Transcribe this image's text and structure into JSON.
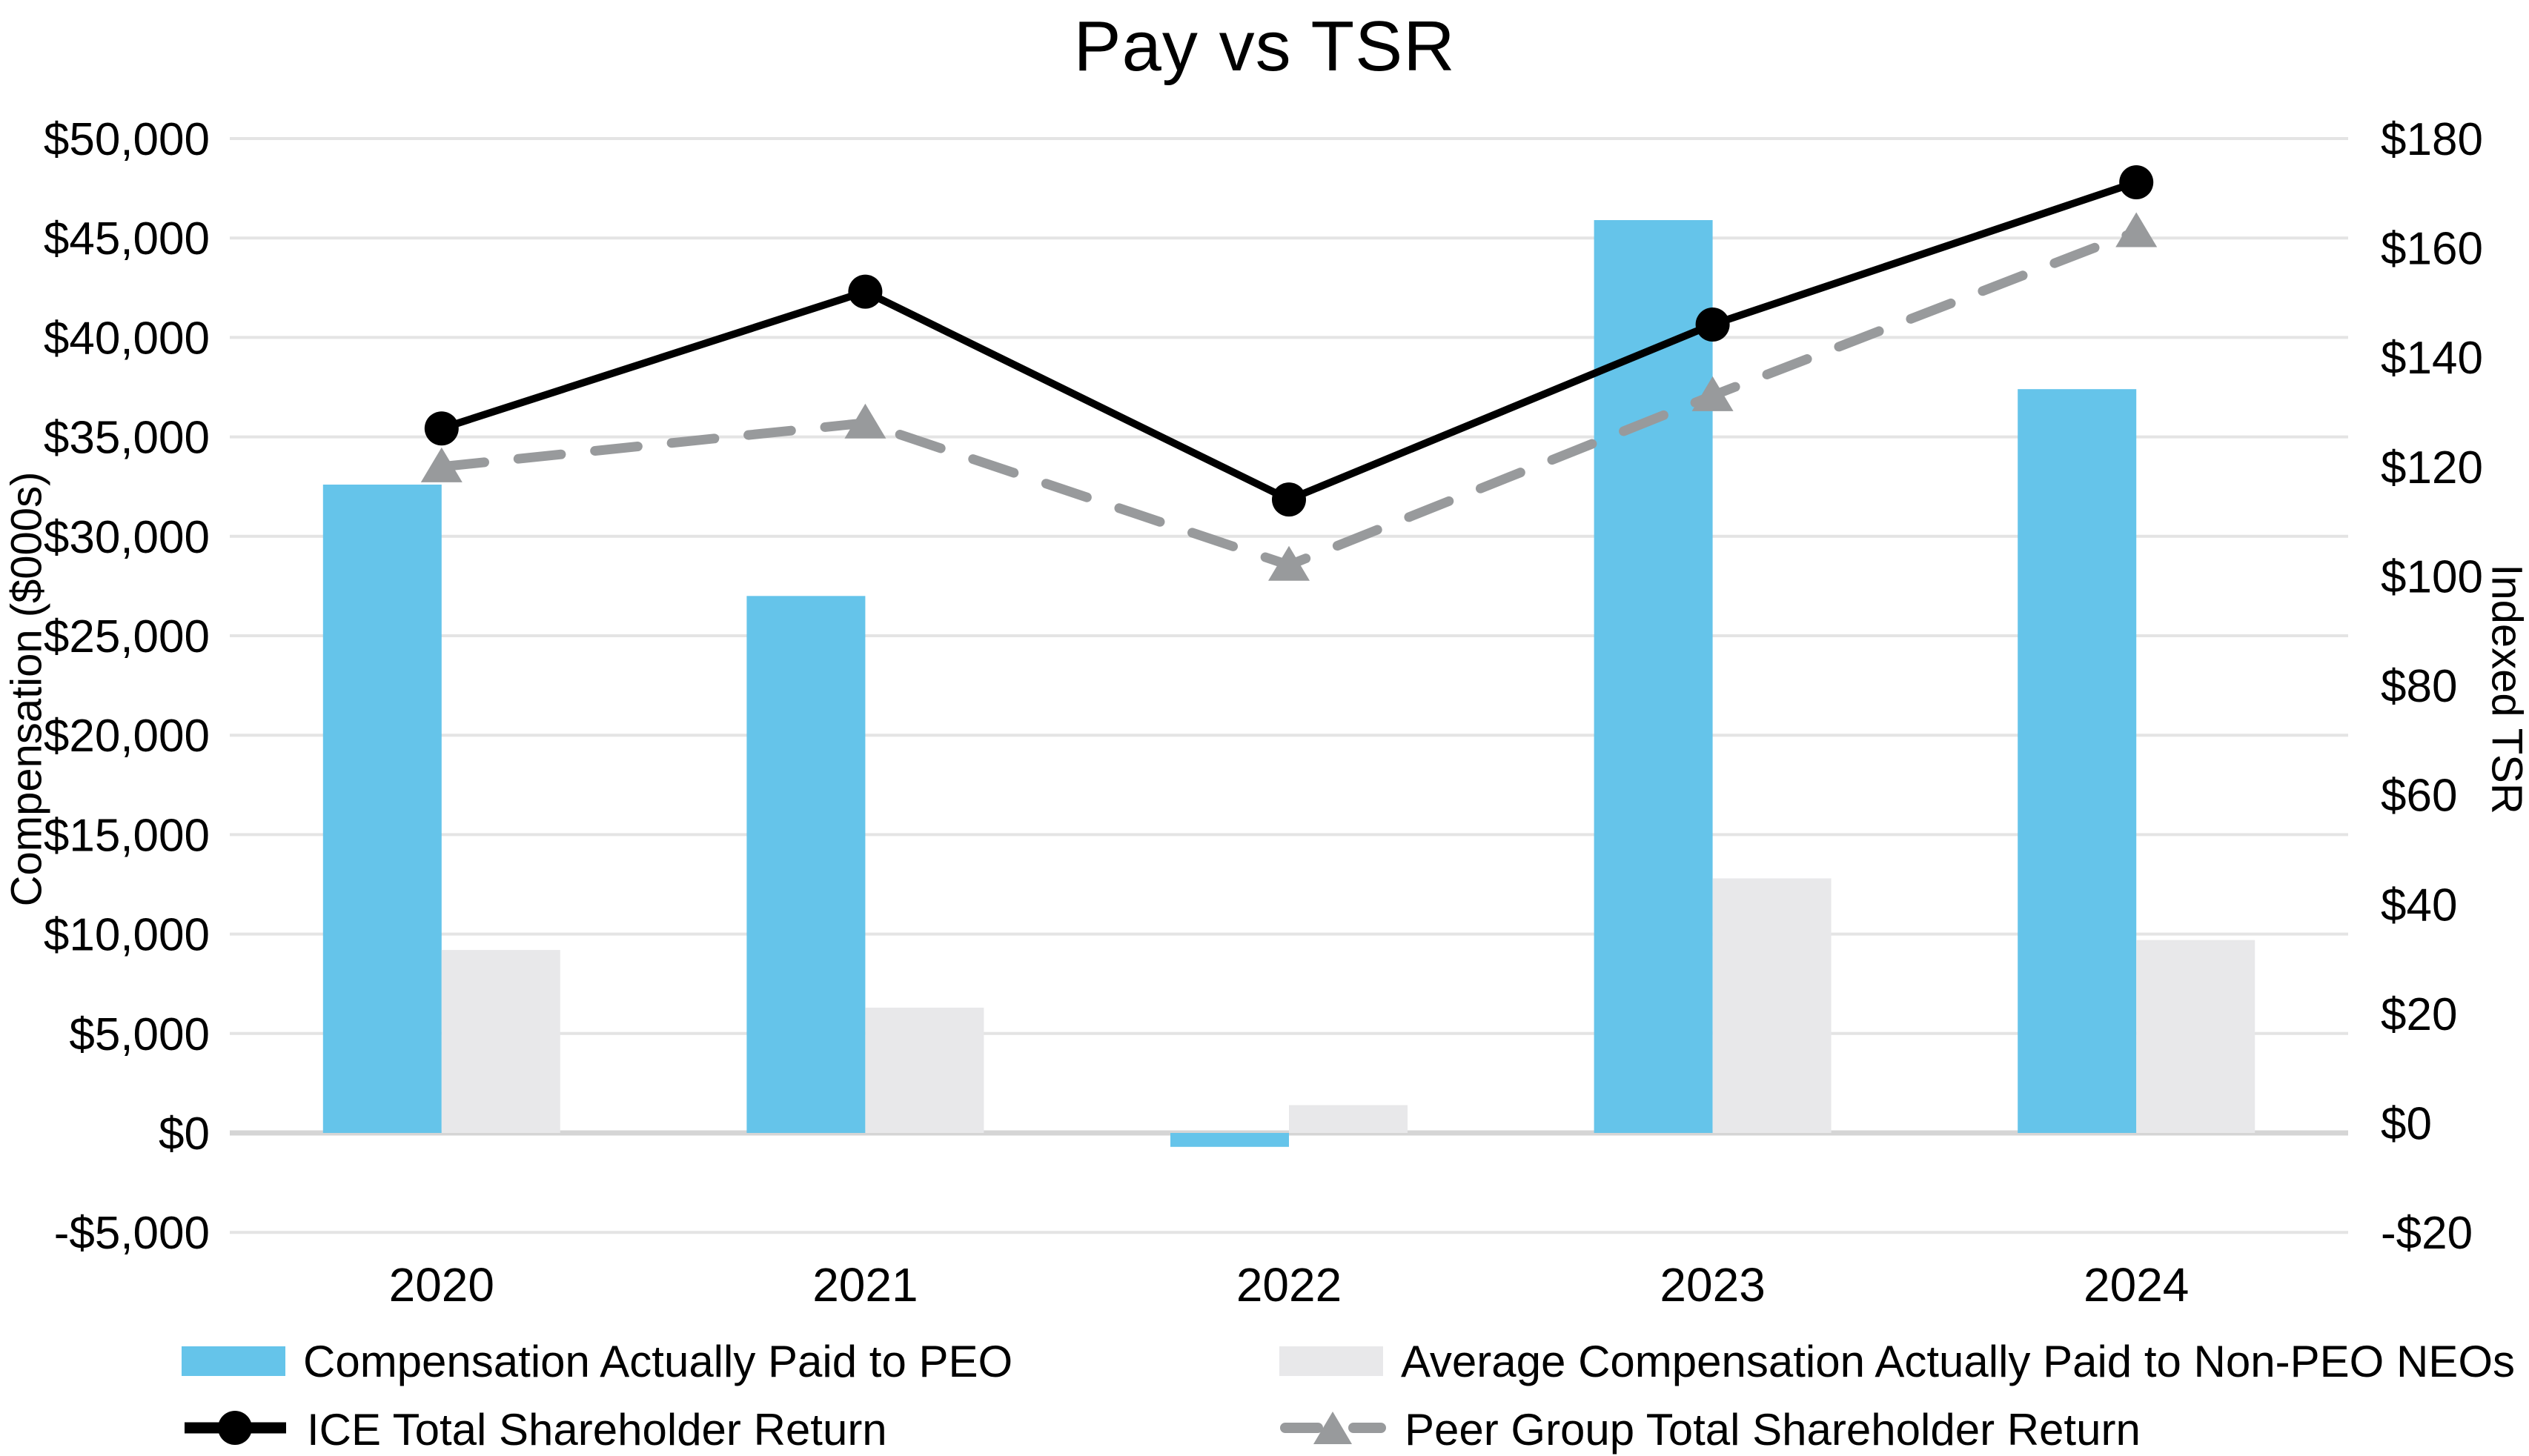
{
  "title": "Pay vs TSR",
  "axes": {
    "left": {
      "title": "Compensation ($000s)",
      "tick_labels": [
        "$50,000",
        "$45,000",
        "$40,000",
        "$35,000",
        "$30,000",
        "$25,000",
        "$20,000",
        "$15,000",
        "$10,000",
        "$5,000",
        "$0",
        "-$5,000"
      ]
    },
    "right": {
      "title": "Indexed TSR",
      "tick_labels": [
        "$180",
        "$160",
        "$140",
        "$120",
        "$100",
        "$80",
        "$60",
        "$40",
        "$20",
        "$0",
        "-$20"
      ]
    }
  },
  "chart_data": {
    "type": "combo bar+line",
    "title": "Pay vs TSR",
    "categories": [
      "2020",
      "2021",
      "2022",
      "2023",
      "2024"
    ],
    "series": [
      {
        "name": "Compensation Actually Paid to PEO",
        "type": "bar",
        "axis": "left",
        "color": "#65C4EA",
        "values": [
          32600,
          27000,
          -700,
          45900,
          37400
        ]
      },
      {
        "name": "Average Compensation Actually Paid to Non-PEO NEOs",
        "type": "bar",
        "axis": "left",
        "color": "#E8E8EA",
        "values": [
          9200,
          6300,
          1400,
          12800,
          9700
        ]
      },
      {
        "name": "ICE Total Shareholder Return",
        "type": "line",
        "axis": "right",
        "color": "#000000",
        "marker": "circle",
        "dashed": false,
        "values": [
          127,
          152,
          114,
          146,
          172
        ]
      },
      {
        "name": "Peer Group Total Shareholder Return",
        "type": "line",
        "axis": "right",
        "color": "#989A9C",
        "marker": "triangle",
        "dashed": true,
        "values": [
          120,
          128,
          102,
          133,
          163
        ]
      }
    ],
    "left_axis": {
      "label": "Compensation ($000s)",
      "min": -5000,
      "max": 50000,
      "step": 5000,
      "unit": "$ thousands"
    },
    "right_axis": {
      "label": "Indexed TSR",
      "min": -20,
      "max": 180,
      "step": 20,
      "unit": "$"
    },
    "grid": "horizontal",
    "legend_position": "bottom",
    "colors": {
      "gridline": "#E4E4E4",
      "zero_line": "#D5D5D5",
      "background": "#FFFFFF"
    }
  }
}
